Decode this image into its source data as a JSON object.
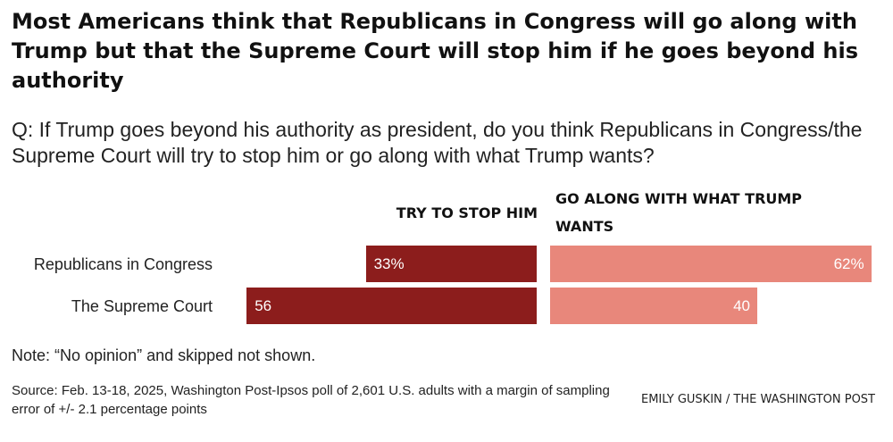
{
  "title": "Most Americans think that Republicans in Congress will go along with Trump but that the Supreme Court will stop him if he goes beyond his authority",
  "subtitle": "Q: If Trump goes beyond his authority as president, do you think Republicans in Congress/the Supreme Court will try to stop him or go along with what Trump wants?",
  "chart_data": {
    "type": "bar",
    "orientation": "horizontal-diverging",
    "categories": [
      "Republicans in Congress",
      "The Supreme Court"
    ],
    "series": [
      {
        "name": "TRY TO STOP HIM",
        "values": [
          33,
          56
        ],
        "labels": [
          "33%",
          "56"
        ],
        "color": "#8c1d1c"
      },
      {
        "name": "GO ALONG WITH WHAT TRUMP WANTS",
        "values": [
          62,
          40
        ],
        "labels": [
          "62%",
          "40"
        ],
        "color": "#e8877b"
      }
    ],
    "unit": "%",
    "xlim": [
      0,
      100
    ],
    "grid": false
  },
  "note": "Note: “No opinion” and skipped not shown.",
  "source": "Source: Feb. 13-18, 2025, Washington Post-Ipsos poll of 2,601 U.S. adults with a margin of sampling error of +/- 2.1 percentage points",
  "credit": "EMILY GUSKIN / THE WASHINGTON POST",
  "colors": {
    "stop": "#8c1d1c",
    "along": "#e8877b"
  }
}
